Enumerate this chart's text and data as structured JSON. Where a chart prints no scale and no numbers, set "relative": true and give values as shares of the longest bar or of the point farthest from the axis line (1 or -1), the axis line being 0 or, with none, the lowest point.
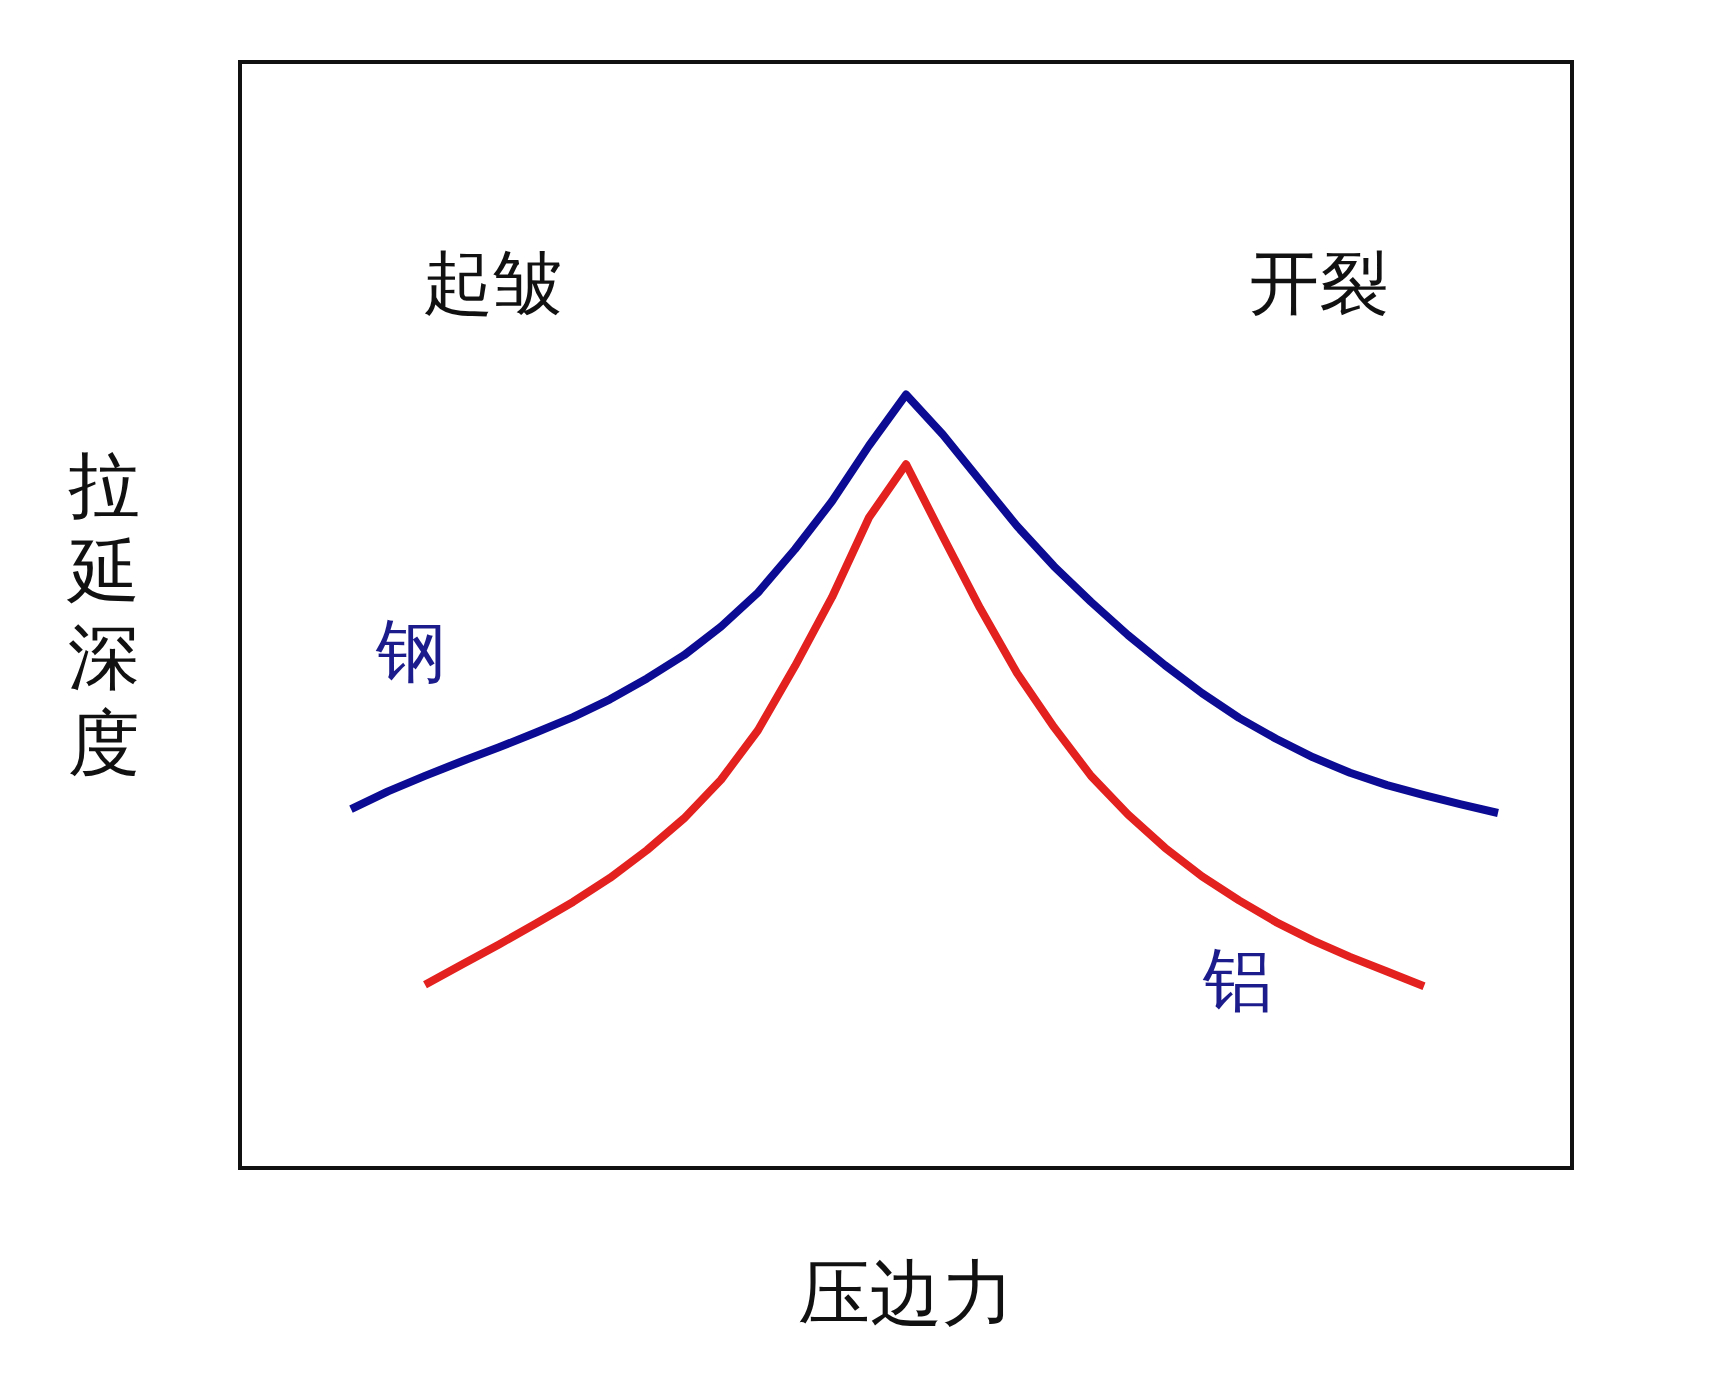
{
  "chart_data": {
    "type": "line",
    "relative": true,
    "xlabel": "压边力",
    "ylabel": "拉延深度",
    "annotations": [
      "起皱",
      "开裂"
    ],
    "categories": [
      null,
      null,
      null,
      null,
      null,
      null,
      null,
      null,
      null,
      null,
      null,
      null,
      null,
      null,
      null,
      null,
      null,
      null,
      null,
      null,
      null,
      null,
      null,
      null,
      null,
      null,
      null,
      null,
      null,
      null,
      null,
      null,
      null,
      null,
      null,
      null,
      null
    ],
    "series": [
      {
        "name": "钢",
        "color": "#0b0b94",
        "values": [
          null,
          null,
          null,
          0.464,
          0.487,
          0.507,
          0.526,
          0.544,
          0.563,
          0.583,
          0.606,
          0.633,
          0.663,
          0.7,
          0.744,
          0.8,
          0.862,
          0.934,
          1,
          0.948,
          0.889,
          0.83,
          0.778,
          0.732,
          0.689,
          0.65,
          0.614,
          0.582,
          0.555,
          0.531,
          0.511,
          0.495,
          0.482,
          0.47,
          0.459,
          null,
          null
        ]
      },
      {
        "name": "铝",
        "color": "#e3211e",
        "values": [
          null,
          null,
          null,
          null,
          null,
          0.237,
          0.263,
          0.289,
          0.316,
          0.344,
          0.375,
          0.411,
          0.452,
          0.502,
          0.566,
          0.649,
          0.738,
          0.841,
          0.91,
          0.816,
          0.724,
          0.64,
          0.57,
          0.507,
          0.457,
          0.414,
          0.377,
          0.346,
          0.318,
          0.294,
          0.273,
          0.254,
          0.235,
          null,
          null,
          null,
          null
        ]
      }
    ]
  }
}
